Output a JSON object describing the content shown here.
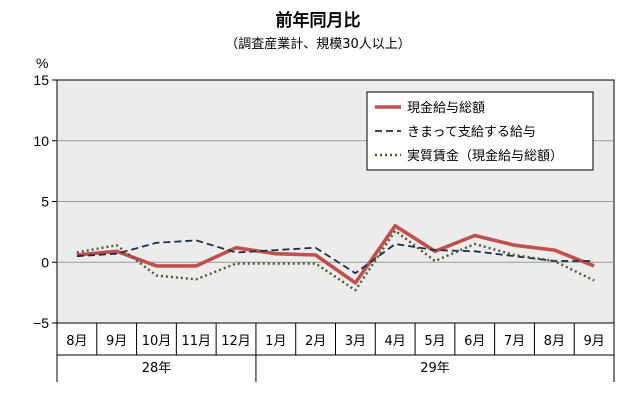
{
  "chart_data": {
    "type": "line",
    "title": "前年同月比",
    "subtitle": "（調査産業計、規模30人以上）",
    "ylabel": "%",
    "ylim": [
      -5,
      15
    ],
    "yticks": [
      "15",
      "10",
      "5",
      "0",
      "−5"
    ],
    "ytick_values": [
      15,
      10,
      5,
      0,
      -5
    ],
    "grid": true,
    "legend_position": "top-right",
    "categories": [
      "8月",
      "9月",
      "10月",
      "11月",
      "12月",
      "1月",
      "2月",
      "3月",
      "4月",
      "5月",
      "6月",
      "7月",
      "8月",
      "9月"
    ],
    "groups": [
      {
        "label": "28年",
        "count": 5
      },
      {
        "label": "29年",
        "count": 9
      }
    ],
    "series": [
      {
        "name": "現金給与総額",
        "color": "#c0504d",
        "style": "solid",
        "values": [
          0.6,
          0.9,
          -0.3,
          -0.3,
          1.2,
          0.7,
          0.6,
          -1.7,
          3.0,
          0.9,
          2.2,
          1.4,
          1.0,
          -0.3
        ]
      },
      {
        "name": "きまって支給する給与",
        "color": "#1f2d4a",
        "style": "dashed",
        "values": [
          0.5,
          0.7,
          1.6,
          1.8,
          0.8,
          1.0,
          1.2,
          -0.9,
          1.5,
          1.0,
          0.9,
          0.5,
          0.1,
          0.1
        ]
      },
      {
        "name": "実質賃金（現金給与総額）",
        "color": "#4e5a2a",
        "style": "dotted",
        "values": [
          0.8,
          1.4,
          -1.1,
          -1.4,
          -0.1,
          -0.1,
          -0.1,
          -2.3,
          2.6,
          0.1,
          1.5,
          0.6,
          0.1,
          -1.5
        ]
      }
    ]
  }
}
